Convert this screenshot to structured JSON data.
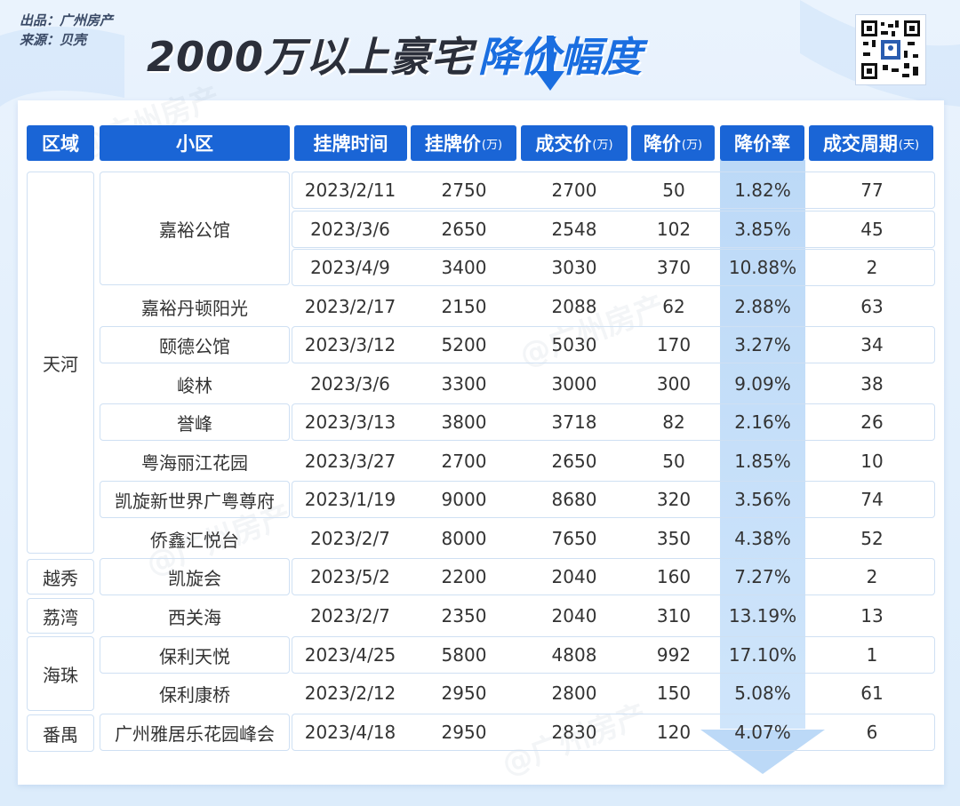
{
  "source": {
    "line1": "出品：广州房产",
    "line2": "来源：贝壳"
  },
  "title": {
    "main": "2000万以上豪宅",
    "accent": "降价幅度"
  },
  "watermark": "@广州房产",
  "headers": {
    "district": "区域",
    "community": "小区",
    "list_time": "挂牌时间",
    "list_price": "挂牌价",
    "deal_price": "成交价",
    "drop": "降价",
    "drop_rate": "降价率",
    "cycle": "成交周期",
    "unit_wan": "(万)",
    "unit_day": "(天)"
  },
  "districts": [
    "天河",
    "越秀",
    "荔湾",
    "海珠",
    "番禺"
  ],
  "communities": [
    "嘉裕公馆",
    "嘉裕丹顿阳光",
    "颐德公馆",
    "峻林",
    "誉峰",
    "粤海丽江花园",
    "凯旋新世界广粤尊府",
    "侨鑫汇悦台",
    "凯旋会",
    "西关海",
    "保利天悦",
    "保利康桥",
    "广州雅居乐花园峰会"
  ],
  "rows": [
    {
      "time": "2023/2/11",
      "list": "2750",
      "deal": "2700",
      "drop": "50",
      "rate": "1.82%",
      "cycle": "77"
    },
    {
      "time": "2023/3/6",
      "list": "2650",
      "deal": "2548",
      "drop": "102",
      "rate": "3.85%",
      "cycle": "45"
    },
    {
      "time": "2023/4/9",
      "list": "3400",
      "deal": "3030",
      "drop": "370",
      "rate": "10.88%",
      "cycle": "2"
    },
    {
      "time": "2023/2/17",
      "list": "2150",
      "deal": "2088",
      "drop": "62",
      "rate": "2.88%",
      "cycle": "63"
    },
    {
      "time": "2023/3/12",
      "list": "5200",
      "deal": "5030",
      "drop": "170",
      "rate": "3.27%",
      "cycle": "34"
    },
    {
      "time": "2023/3/6",
      "list": "3300",
      "deal": "3000",
      "drop": "300",
      "rate": "9.09%",
      "cycle": "38"
    },
    {
      "time": "2023/3/13",
      "list": "3800",
      "deal": "3718",
      "drop": "82",
      "rate": "2.16%",
      "cycle": "26"
    },
    {
      "time": "2023/3/27",
      "list": "2700",
      "deal": "2650",
      "drop": "50",
      "rate": "1.85%",
      "cycle": "10"
    },
    {
      "time": "2023/1/19",
      "list": "9000",
      "deal": "8680",
      "drop": "320",
      "rate": "3.56%",
      "cycle": "74"
    },
    {
      "time": "2023/2/7",
      "list": "8000",
      "deal": "7650",
      "drop": "350",
      "rate": "4.38%",
      "cycle": "52"
    },
    {
      "time": "2023/5/2",
      "list": "2200",
      "deal": "2040",
      "drop": "160",
      "rate": "7.27%",
      "cycle": "2"
    },
    {
      "time": "2023/2/7",
      "list": "2350",
      "deal": "2040",
      "drop": "310",
      "rate": "13.19%",
      "cycle": "13"
    },
    {
      "time": "2023/4/25",
      "list": "5800",
      "deal": "4808",
      "drop": "992",
      "rate": "17.10%",
      "cycle": "1"
    },
    {
      "time": "2023/2/12",
      "list": "2950",
      "deal": "2800",
      "drop": "150",
      "rate": "5.08%",
      "cycle": "61"
    },
    {
      "time": "2023/4/18",
      "list": "2950",
      "deal": "2830",
      "drop": "120",
      "rate": "4.07%",
      "cycle": "6"
    }
  ],
  "colors": {
    "header_bg": "#1a65d6",
    "accent": "#1a6ee0",
    "highlight_col": "#c6dff8"
  }
}
